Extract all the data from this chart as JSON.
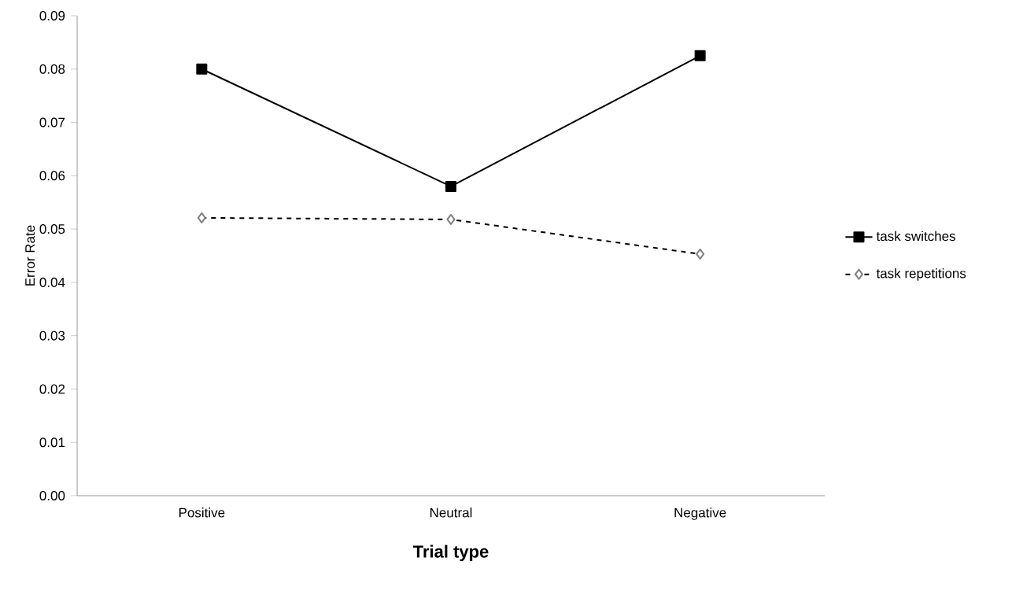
{
  "chart_data": {
    "type": "line",
    "xlabel": "Trial type",
    "ylabel": "Error Rate",
    "categories": [
      "Positive",
      "Neutral",
      "Negative"
    ],
    "series": [
      {
        "name": "task switches",
        "color": "#000000",
        "values": [
          0.08,
          0.058,
          0.0825
        ],
        "marker": "square",
        "line_style": "solid"
      },
      {
        "name": "task repetitions",
        "color": "#000000",
        "values": [
          0.0521,
          0.0518,
          0.0453
        ],
        "marker": "diamond",
        "line_style": "dashed"
      }
    ],
    "ylim": [
      0,
      0.09
    ],
    "yticks": [
      {
        "value": 0,
        "label": "0.00"
      },
      {
        "value": 0.01,
        "label": "0.01"
      },
      {
        "value": 0.02,
        "label": "0.02"
      },
      {
        "value": 0.03,
        "label": "0.03"
      },
      {
        "value": 0.04,
        "label": "0.04"
      },
      {
        "value": 0.05,
        "label": "0.05"
      },
      {
        "value": 0.06,
        "label": "0.06"
      },
      {
        "value": 0.07,
        "label": "0.07"
      },
      {
        "value": 0.08,
        "label": "0.08"
      },
      {
        "value": 0.09,
        "label": "0.09"
      }
    ],
    "grid": false,
    "legend": "right"
  }
}
